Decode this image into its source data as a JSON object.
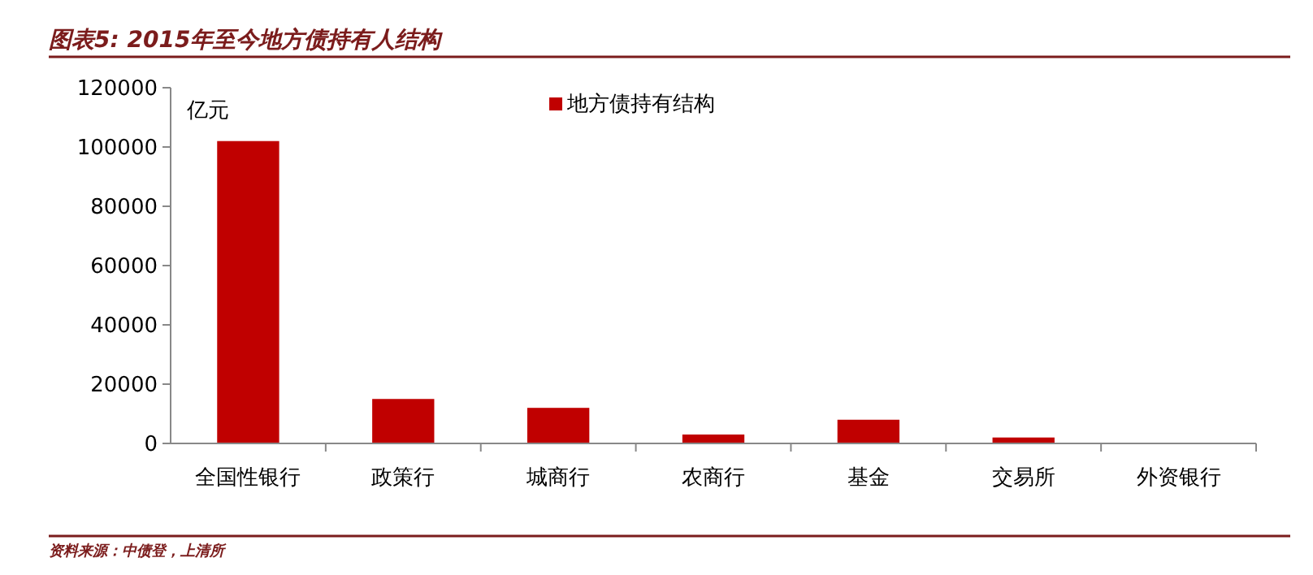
{
  "chart_data": {
    "type": "bar",
    "title": "图表5: 2015年至今地方债持有人结构",
    "ylabel": "亿元",
    "annotations": [
      "资料来源：中债登，上清所"
    ],
    "categories": [
      "全国性银行",
      "政策行",
      "城商行",
      "农商行",
      "基金",
      "交易所",
      "外资银行"
    ],
    "series": [
      {
        "name": "地方债持有结构",
        "color": "#c00000",
        "values": [
          102000,
          15000,
          12000,
          3000,
          8000,
          2000,
          0
        ]
      }
    ],
    "ylim": [
      0,
      120000
    ],
    "yticks": [
      0,
      20000,
      40000,
      60000,
      80000,
      100000,
      120000
    ],
    "grid": false,
    "legend": "top"
  }
}
